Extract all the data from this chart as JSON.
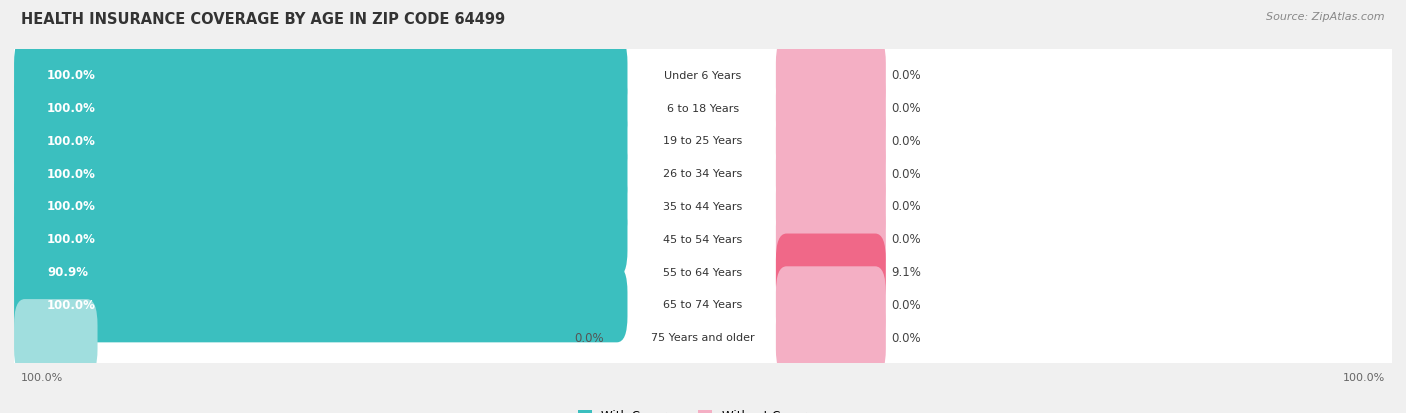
{
  "title": "HEALTH INSURANCE COVERAGE BY AGE IN ZIP CODE 64499",
  "source": "Source: ZipAtlas.com",
  "categories": [
    "Under 6 Years",
    "6 to 18 Years",
    "19 to 25 Years",
    "26 to 34 Years",
    "35 to 44 Years",
    "45 to 54 Years",
    "55 to 64 Years",
    "65 to 74 Years",
    "75 Years and older"
  ],
  "with_coverage": [
    100.0,
    100.0,
    100.0,
    100.0,
    100.0,
    100.0,
    90.9,
    100.0,
    0.0
  ],
  "without_coverage": [
    0.0,
    0.0,
    0.0,
    0.0,
    0.0,
    0.0,
    9.1,
    0.0,
    0.0
  ],
  "color_with": "#3bbfbf",
  "color_without_dark": "#f06888",
  "color_without_light": "#f4afc4",
  "color_with_light": "#a0dede",
  "bg_color": "#f0f0f0",
  "row_bg": "#ffffff",
  "title_fontsize": 10.5,
  "source_fontsize": 8,
  "label_fontsize": 8,
  "tick_fontsize": 8,
  "legend_fontsize": 8.5,
  "bar_label_fontsize": 8.5
}
